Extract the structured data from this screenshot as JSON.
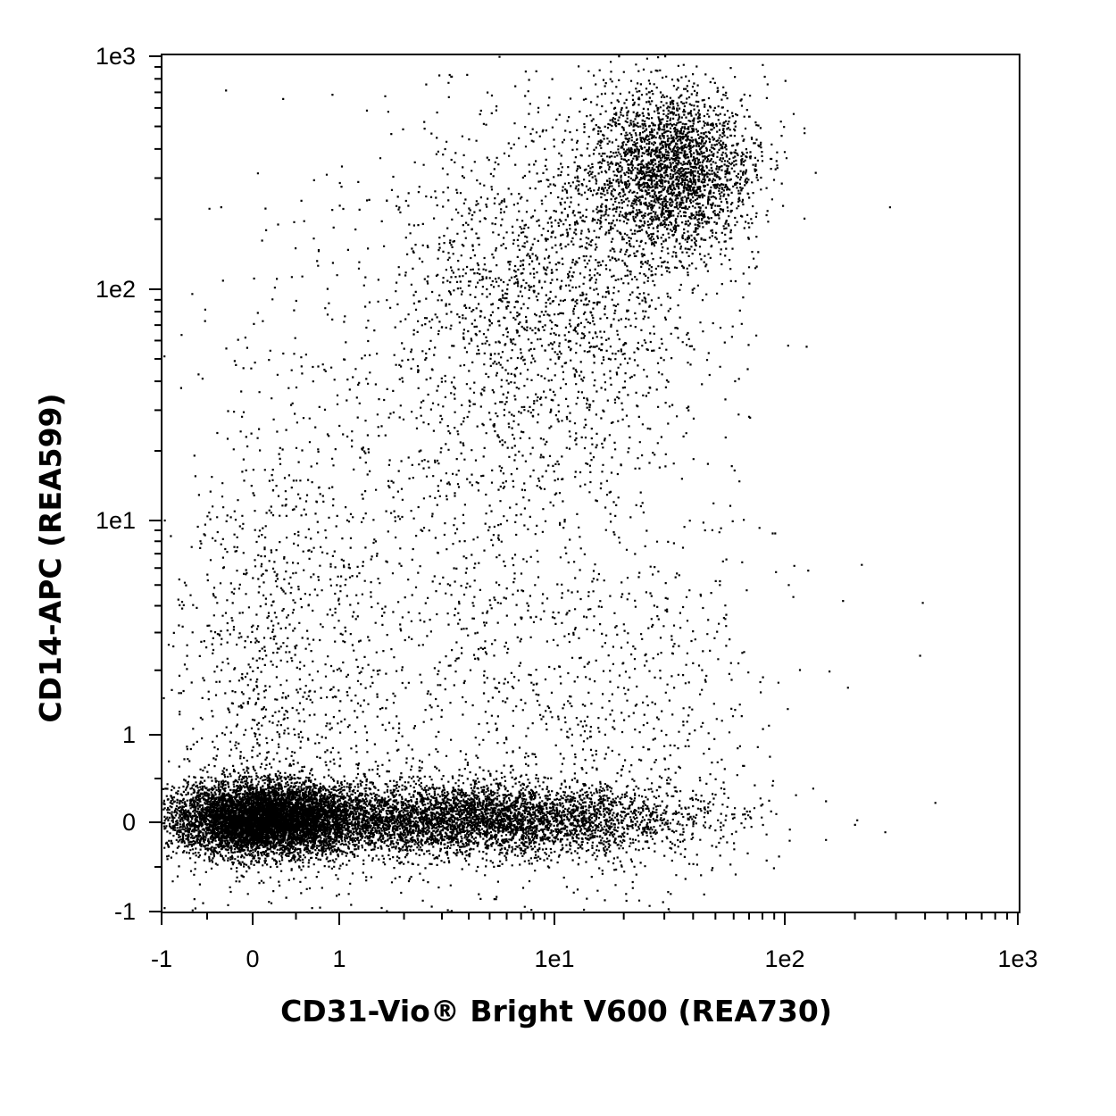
{
  "chart_data": {
    "type": "scatter",
    "title": "",
    "xlabel": "CD31-Vio® Bright V600 (REA730)",
    "ylabel": "CD14-APC (REA599)",
    "x_scale": "biexponential",
    "y_scale": "biexponential",
    "xlim": [
      -1,
      1000
    ],
    "ylim": [
      -1,
      1000
    ],
    "x_ticks": [
      {
        "value": -1,
        "label": "-1"
      },
      {
        "value": 0,
        "label": "0"
      },
      {
        "value": 1,
        "label": "1"
      },
      {
        "value": 10,
        "label": "1e1"
      },
      {
        "value": 100,
        "label": "1e2"
      },
      {
        "value": 1000,
        "label": "1e3"
      }
    ],
    "y_ticks": [
      {
        "value": -1,
        "label": "-1"
      },
      {
        "value": 0,
        "label": "0"
      },
      {
        "value": 1,
        "label": "1"
      },
      {
        "value": 10,
        "label": "1e1"
      },
      {
        "value": 100,
        "label": "1e2"
      },
      {
        "value": 1000,
        "label": "1e3"
      }
    ],
    "grid": false,
    "legend": "none",
    "dot_color": "#000000",
    "populations": [
      {
        "x_center": 0.1,
        "y_center": 0.05,
        "x_spread": 0.45,
        "y_spread": 0.35,
        "count": 16000
      },
      {
        "x_center": 3.5,
        "y_center": 0.05,
        "x_spread": 0.5,
        "y_spread": 0.35,
        "count": 15000
      },
      {
        "x_center": 32,
        "y_center": 330,
        "x_spread": 0.18,
        "y_spread": 0.18,
        "count": 2600
      },
      {
        "x_center": 10,
        "y_center": 100,
        "x_spread": 0.35,
        "y_spread": 0.4,
        "count": 1700
      },
      {
        "x_center": 3,
        "y_center": 5,
        "x_spread": 0.6,
        "y_spread": 0.9,
        "count": 1700
      },
      {
        "x_center": 0.2,
        "y_center": 1.5,
        "x_spread": 0.5,
        "y_spread": 0.6,
        "count": 900
      },
      {
        "x_center": 20,
        "y_center": 1.2,
        "x_spread": 0.35,
        "y_spread": 0.5,
        "count": 500
      }
    ]
  }
}
